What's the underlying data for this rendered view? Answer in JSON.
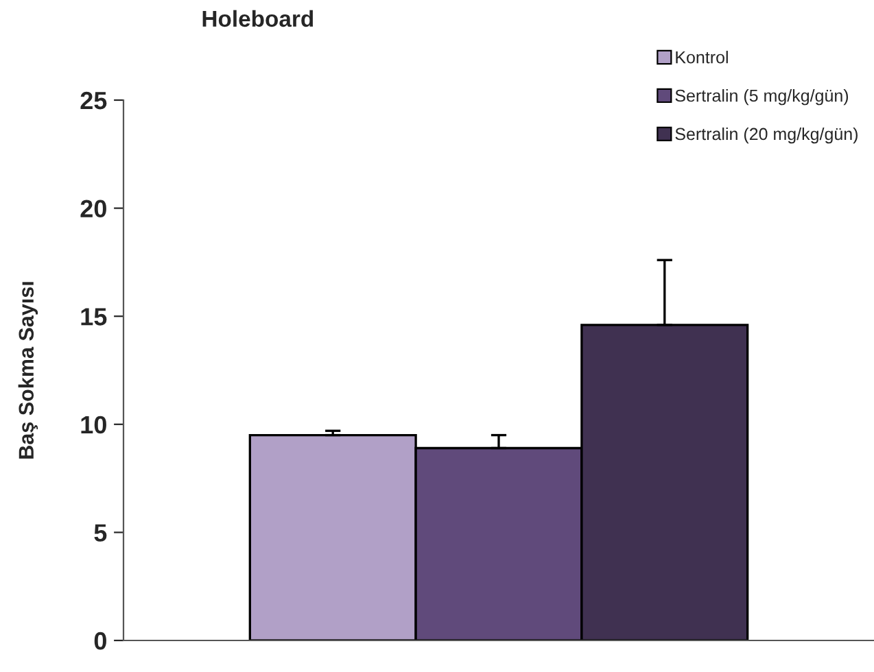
{
  "chart_data": {
    "type": "bar",
    "title": "Holeboard",
    "ylabel": "Baş Sokma Sayısı",
    "categories": [
      null
    ],
    "series": [
      {
        "name": "Kontrol",
        "color": "#b1a0c7",
        "values": [
          9.5
        ],
        "errors": [
          [
            9.5,
            9.7
          ]
        ]
      },
      {
        "name": "Sertralin (5 mg/kg/gün)",
        "color": "#604a7b",
        "values": [
          8.9
        ],
        "errors": [
          [
            8.9,
            9.5
          ]
        ]
      },
      {
        "name": "Sertralin (20 mg/kg/gün)",
        "color": "#403151",
        "values": [
          14.6
        ],
        "errors": [
          [
            14.6,
            17.6
          ]
        ]
      }
    ],
    "ylim": [
      0,
      25
    ],
    "yticks": [
      0,
      5,
      10,
      15,
      20,
      25
    ],
    "grid": false,
    "legend": "top right"
  }
}
